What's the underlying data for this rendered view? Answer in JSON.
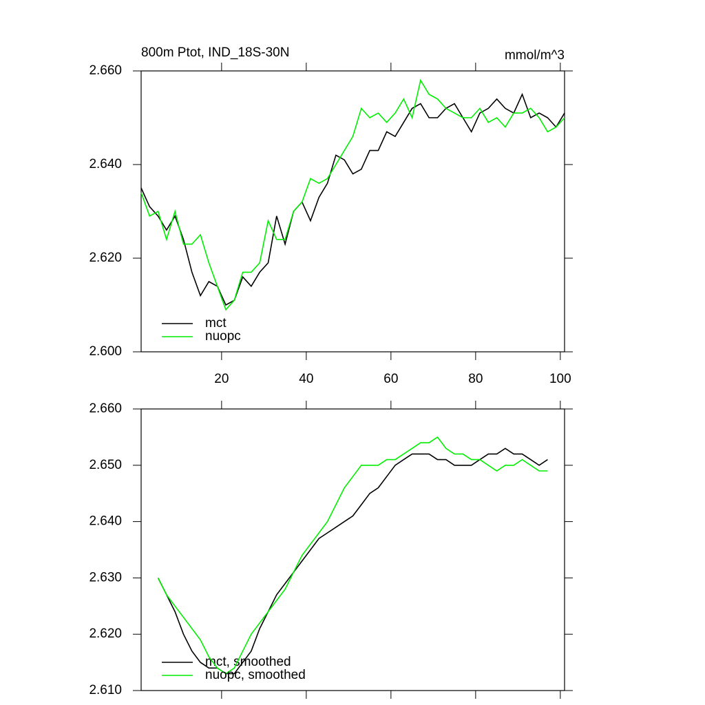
{
  "chart_data": [
    {
      "type": "line",
      "title": "800m Ptot, IND_18S-30N",
      "units": "mmol/m^3",
      "x": [
        1,
        3,
        5,
        7,
        9,
        11,
        13,
        15,
        17,
        19,
        21,
        23,
        25,
        27,
        29,
        31,
        33,
        35,
        37,
        39,
        41,
        43,
        45,
        47,
        49,
        51,
        53,
        55,
        57,
        59,
        61,
        63,
        65,
        67,
        69,
        71,
        73,
        75,
        77,
        79,
        81,
        83,
        85,
        87,
        89,
        91,
        93,
        95,
        97,
        99,
        101
      ],
      "series": [
        {
          "name": "mct",
          "color": "#000000",
          "values": [
            2.635,
            2.631,
            2.629,
            2.626,
            2.629,
            2.624,
            2.617,
            2.612,
            2.615,
            2.614,
            2.61,
            2.611,
            2.616,
            2.614,
            2.617,
            2.619,
            2.629,
            2.623,
            2.63,
            2.632,
            2.628,
            2.633,
            2.636,
            2.642,
            2.641,
            2.638,
            2.639,
            2.643,
            2.643,
            2.647,
            2.646,
            2.649,
            2.652,
            2.653,
            2.65,
            2.65,
            2.652,
            2.653,
            2.65,
            2.647,
            2.651,
            2.652,
            2.654,
            2.652,
            2.651,
            2.655,
            2.65,
            2.651,
            2.65,
            2.648,
            2.651
          ]
        },
        {
          "name": "nuopc",
          "color": "#00ee00",
          "values": [
            2.634,
            2.629,
            2.63,
            2.624,
            2.63,
            2.623,
            2.623,
            2.625,
            2.619,
            2.614,
            2.609,
            2.611,
            2.617,
            2.617,
            2.619,
            2.628,
            2.624,
            2.624,
            2.63,
            2.632,
            2.637,
            2.636,
            2.637,
            2.64,
            2.643,
            2.646,
            2.652,
            2.65,
            2.651,
            2.649,
            2.651,
            2.654,
            2.65,
            2.658,
            2.655,
            2.654,
            2.652,
            2.651,
            2.65,
            2.65,
            2.652,
            2.649,
            2.65,
            2.648,
            2.651,
            2.651,
            2.652,
            2.65,
            2.647,
            2.648,
            2.65
          ]
        }
      ],
      "xlim": [
        1,
        101
      ],
      "xticks": [
        20,
        40,
        60,
        80,
        100
      ],
      "ylim": [
        2.6,
        2.66
      ],
      "yticks": [
        {
          "value": 2.6,
          "label": "2.600"
        },
        {
          "value": 2.62,
          "label": "2.620"
        },
        {
          "value": 2.64,
          "label": "2.640"
        },
        {
          "value": 2.66,
          "label": "2.660"
        }
      ],
      "legend": "lower left"
    },
    {
      "type": "line",
      "x": [
        5,
        7,
        9,
        11,
        13,
        15,
        17,
        19,
        21,
        23,
        25,
        27,
        29,
        31,
        33,
        35,
        37,
        39,
        41,
        43,
        45,
        47,
        49,
        51,
        53,
        55,
        57,
        59,
        61,
        63,
        65,
        67,
        69,
        71,
        73,
        75,
        77,
        79,
        81,
        83,
        85,
        87,
        89,
        91,
        93,
        95,
        97
      ],
      "series": [
        {
          "name": "mct, smoothed",
          "color": "#000000",
          "values": [
            2.63,
            2.627,
            2.624,
            2.62,
            2.617,
            2.615,
            2.614,
            2.614,
            2.613,
            2.613,
            2.615,
            2.617,
            2.621,
            2.624,
            2.627,
            2.629,
            2.631,
            2.633,
            2.635,
            2.637,
            2.638,
            2.639,
            2.64,
            2.641,
            2.643,
            2.645,
            2.646,
            2.648,
            2.65,
            2.651,
            2.652,
            2.652,
            2.652,
            2.651,
            2.651,
            2.65,
            2.65,
            2.65,
            2.651,
            2.652,
            2.652,
            2.653,
            2.652,
            2.652,
            2.651,
            2.65,
            2.651
          ]
        },
        {
          "name": "nuopc, smoothed",
          "color": "#00ee00",
          "values": [
            2.63,
            2.627,
            2.625,
            2.623,
            2.621,
            2.619,
            2.616,
            2.614,
            2.613,
            2.614,
            2.617,
            2.62,
            2.622,
            2.624,
            2.626,
            2.628,
            2.631,
            2.634,
            2.636,
            2.638,
            2.64,
            2.643,
            2.646,
            2.648,
            2.65,
            2.65,
            2.65,
            2.651,
            2.651,
            2.652,
            2.653,
            2.654,
            2.654,
            2.655,
            2.653,
            2.652,
            2.652,
            2.651,
            2.651,
            2.65,
            2.649,
            2.65,
            2.65,
            2.651,
            2.65,
            2.649,
            2.649
          ]
        }
      ],
      "xlim": [
        1,
        101
      ],
      "xticks": [
        20,
        40,
        60,
        80,
        100
      ],
      "ylim": [
        2.61,
        2.66
      ],
      "yticks": [
        {
          "value": 2.61,
          "label": "2.610"
        },
        {
          "value": 2.62,
          "label": "2.620"
        },
        {
          "value": 2.63,
          "label": "2.630"
        },
        {
          "value": 2.64,
          "label": "2.640"
        },
        {
          "value": 2.65,
          "label": "2.650"
        },
        {
          "value": 2.66,
          "label": "2.660"
        }
      ],
      "legend": "lower left"
    }
  ]
}
